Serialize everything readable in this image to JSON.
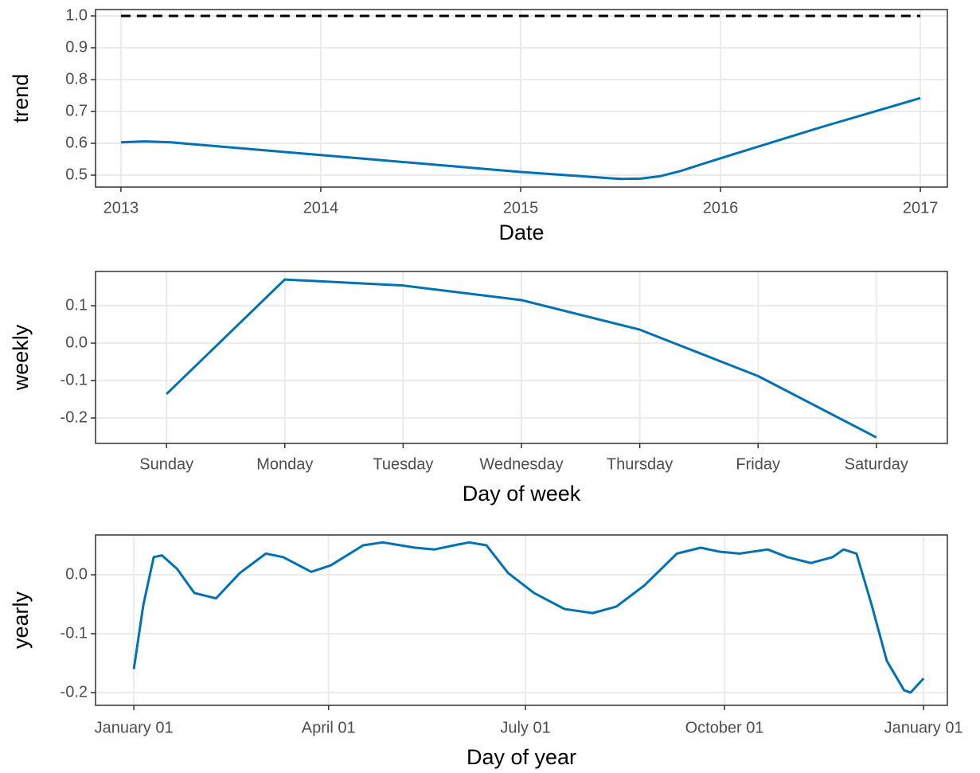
{
  "chart_data": [
    {
      "type": "line",
      "x_label": "Date",
      "y_label": "trend",
      "x": [
        2013.0,
        2013.12,
        2013.25,
        2014.0,
        2015.0,
        2015.5,
        2015.6,
        2015.7,
        2015.8,
        2016.0,
        2016.5,
        2017.0
      ],
      "series": [
        {
          "color": "#0072B2",
          "values": [
            0.603,
            0.606,
            0.603,
            0.563,
            0.51,
            0.488,
            0.489,
            0.497,
            0.513,
            0.553,
            0.65,
            0.742
          ]
        }
      ],
      "cap": {
        "x": [
          2013.0,
          2017.0
        ],
        "values": [
          1.0,
          1.0
        ],
        "color": "#000000",
        "dashed": true
      },
      "xlim": [
        2012.873,
        2017.135
      ],
      "xticks": [
        2013,
        2014,
        2015,
        2016,
        2017
      ],
      "ylim": [
        0.4625,
        1.02
      ],
      "yticks": [
        0.5,
        0.6,
        0.7,
        0.8,
        0.9,
        {
          "value": 1,
          "label": "1.0"
        }
      ],
      "grid": true
    },
    {
      "type": "line",
      "x_label": "Day of week",
      "y_label": "weekly",
      "categories": [
        "Sunday",
        "Monday",
        "Tuesday",
        "Wednesday",
        "Thursday",
        "Friday",
        "Saturday"
      ],
      "series": [
        {
          "color": "#0072B2",
          "values": [
            -0.136,
            0.17,
            0.154,
            0.115,
            0.036,
            -0.088,
            -0.252
          ]
        }
      ],
      "ylim": [
        -0.268,
        0.1915
      ],
      "yticks": [
        -0.2,
        -0.1,
        {
          "value": 0,
          "label": "0.0"
        },
        0.1
      ],
      "grid": true
    },
    {
      "type": "line",
      "x_label": "Day of year",
      "y_label": "yearly",
      "x": [
        0,
        4.4,
        9.2,
        13,
        20,
        28,
        38,
        49,
        61,
        69,
        82,
        91,
        106,
        115,
        130,
        139,
        148,
        155,
        163,
        173,
        185,
        199,
        212,
        223,
        236,
        251,
        262,
        271,
        280,
        293,
        302,
        313,
        323,
        328,
        334,
        341,
        348,
        356,
        359,
        365
      ],
      "series": [
        {
          "color": "#0072B2",
          "values": [
            -0.16,
            -0.051,
            0.03,
            0.033,
            0.01,
            -0.031,
            -0.04,
            0.003,
            0.036,
            0.03,
            0.005,
            0.016,
            0.05,
            0.055,
            0.046,
            0.043,
            0.05,
            0.055,
            0.05,
            0.003,
            -0.031,
            -0.058,
            -0.065,
            -0.054,
            -0.018,
            0.036,
            0.046,
            0.039,
            0.036,
            0.043,
            0.03,
            0.02,
            0.03,
            0.043,
            0.036,
            -0.051,
            -0.146,
            -0.196,
            -0.2,
            -0.176
          ]
        }
      ],
      "xlim": [
        -17.7,
        376
      ],
      "xticks": [
        {
          "value": 0,
          "label": "January 01"
        },
        {
          "value": 90,
          "label": "April 01"
        },
        {
          "value": 181,
          "label": "July 01"
        },
        {
          "value": 273,
          "label": "October 01"
        },
        {
          "value": 365,
          "label": "January 01"
        }
      ],
      "ylim": [
        -0.2216,
        0.0676
      ],
      "yticks": [
        -0.2,
        -0.1,
        {
          "value": 0,
          "label": "0.0"
        }
      ],
      "grid": true
    }
  ]
}
